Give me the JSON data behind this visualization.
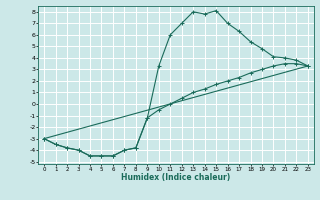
{
  "xlabel": "Humidex (Indice chaleur)",
  "bg_color": "#cce8e8",
  "grid_color": "#ffffff",
  "line_color": "#1a6b5a",
  "xlim": [
    -0.5,
    23.5
  ],
  "ylim": [
    -5.2,
    8.5
  ],
  "xticks": [
    0,
    1,
    2,
    3,
    4,
    5,
    6,
    7,
    8,
    9,
    10,
    11,
    12,
    13,
    14,
    15,
    16,
    17,
    18,
    19,
    20,
    21,
    22,
    23
  ],
  "yticks": [
    -5,
    -4,
    -3,
    -2,
    -1,
    0,
    1,
    2,
    3,
    4,
    5,
    6,
    7,
    8
  ],
  "line1_x": [
    0,
    1,
    2,
    3,
    4,
    5,
    6,
    7,
    8,
    9,
    10,
    11,
    12,
    13,
    14,
    15,
    16,
    17,
    18,
    19,
    20,
    21,
    22,
    23
  ],
  "line1_y": [
    -3.0,
    -3.5,
    -3.8,
    -4.0,
    -4.5,
    -4.5,
    -4.5,
    -4.0,
    -3.8,
    -1.2,
    3.3,
    6.0,
    7.0,
    8.0,
    7.8,
    8.1,
    7.0,
    6.3,
    5.4,
    4.8,
    4.1,
    4.0,
    3.8,
    3.3
  ],
  "line2_x": [
    0,
    1,
    2,
    3,
    4,
    5,
    6,
    7,
    8,
    9,
    10,
    11,
    12,
    13,
    14,
    15,
    16,
    17,
    18,
    19,
    20,
    21,
    22,
    23
  ],
  "line2_y": [
    -3.0,
    -3.5,
    -3.8,
    -4.0,
    -4.5,
    -4.5,
    -4.5,
    -4.0,
    -3.8,
    -1.2,
    -0.5,
    0.0,
    0.5,
    1.0,
    1.3,
    1.7,
    2.0,
    2.3,
    2.7,
    3.0,
    3.3,
    3.5,
    3.5,
    3.3
  ],
  "line3_x": [
    0,
    23
  ],
  "line3_y": [
    -3.0,
    3.3
  ],
  "line4_x": [
    0,
    23
  ],
  "line4_y": [
    -3.0,
    3.3
  ]
}
